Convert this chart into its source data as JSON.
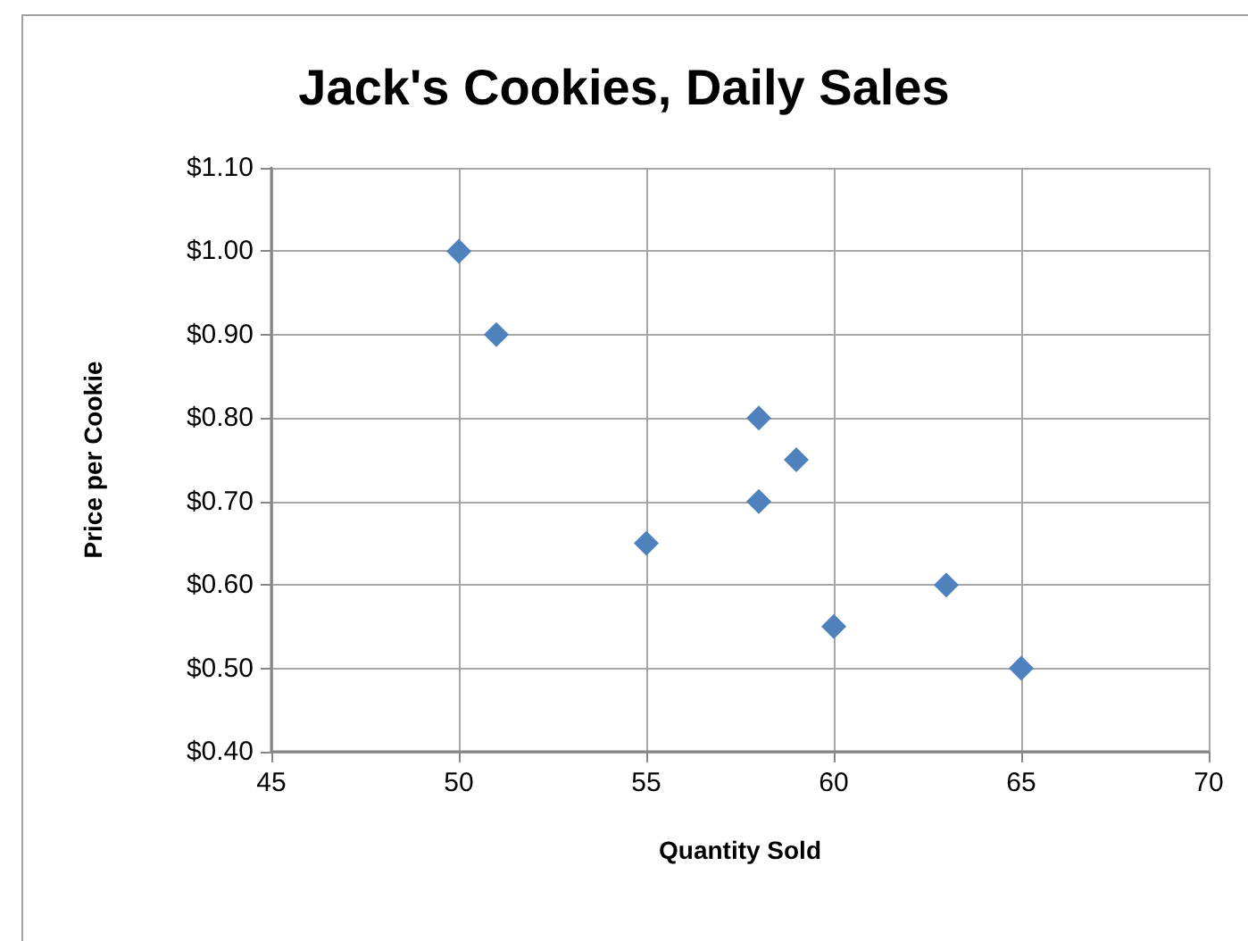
{
  "chart_data": {
    "type": "scatter",
    "title": "Jack's Cookies, Daily Sales",
    "xlabel": "Quantity Sold",
    "ylabel": "Price per Cookie",
    "x": [
      50,
      51,
      58,
      59,
      58,
      55,
      63,
      60,
      65
    ],
    "values": [
      1.0,
      0.9,
      0.8,
      0.75,
      0.7,
      0.65,
      0.6,
      0.55,
      0.5
    ],
    "color": "#4f81bd",
    "marker": "diamond",
    "xlim": [
      45,
      70
    ],
    "xticks": [
      45,
      50,
      55,
      60,
      65,
      70
    ],
    "ylim": [
      0.4,
      1.1
    ],
    "yticks": [
      {
        "value": 0.4,
        "label": "$0.40"
      },
      {
        "value": 0.5,
        "label": "$0.50"
      },
      {
        "value": 0.6,
        "label": "$0.60"
      },
      {
        "value": 0.7,
        "label": "$0.70"
      },
      {
        "value": 0.8,
        "label": "$0.80"
      },
      {
        "value": 0.9,
        "label": "$0.90"
      },
      {
        "value": 1.0,
        "label": "$1.00"
      },
      {
        "value": 1.1,
        "label": "$1.10"
      }
    ],
    "grid": true
  }
}
